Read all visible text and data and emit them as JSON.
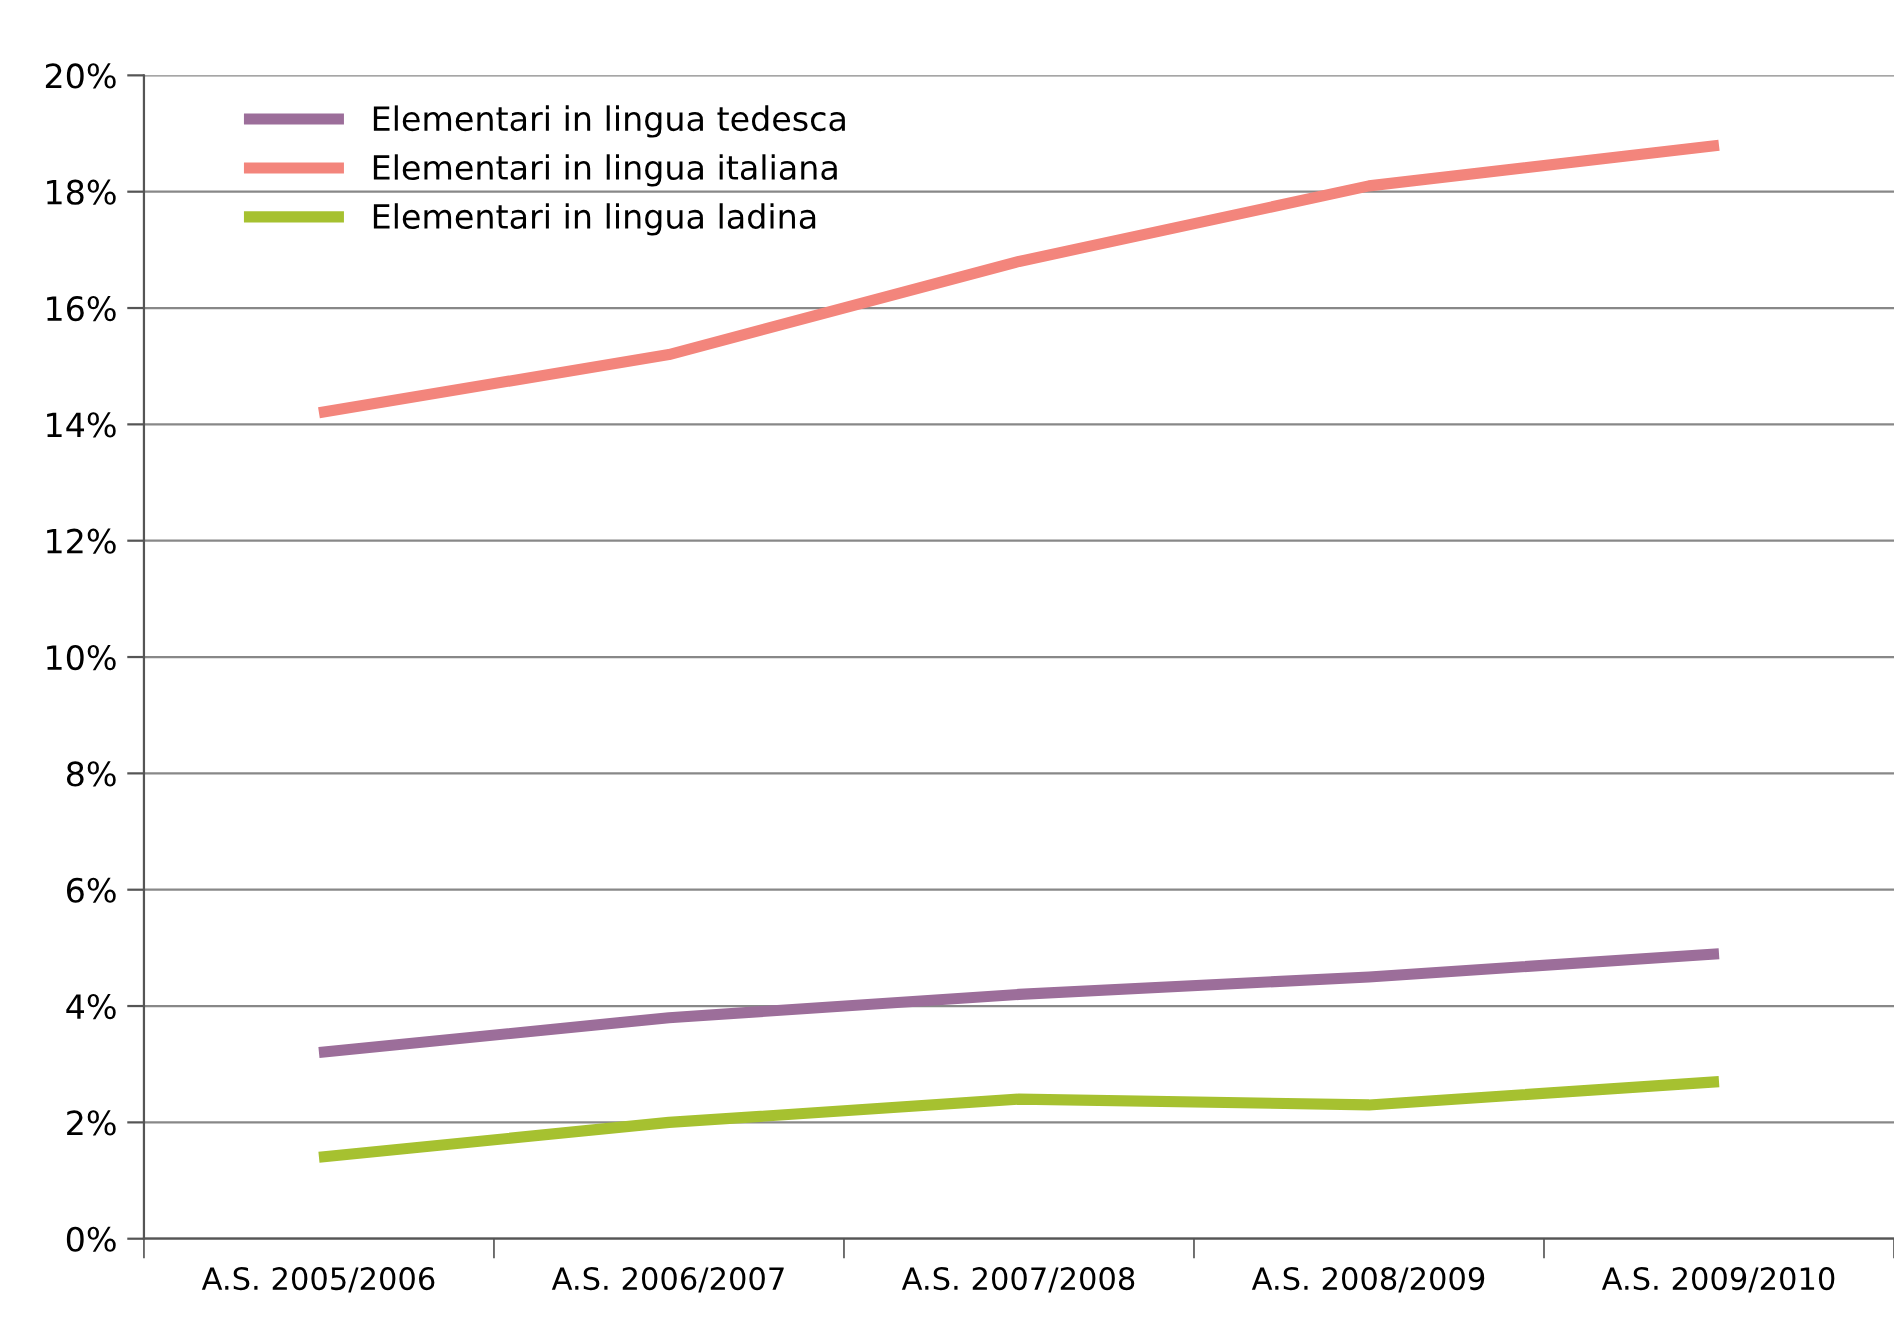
{
  "chart_data": {
    "type": "line",
    "categories": [
      "A.S. 2005/2006",
      "A.S. 2006/2007",
      "A.S. 2007/2008",
      "A.S. 2008/2009",
      "A.S. 2009/2010"
    ],
    "series": [
      {
        "name": "Elementari in lingua tedesca",
        "color": "#9c6e9a",
        "values": [
          3.2,
          3.8,
          4.2,
          4.5,
          4.9
        ]
      },
      {
        "name": "Elementari in lingua italiana",
        "color": "#f3857c",
        "values": [
          14.2,
          15.2,
          16.8,
          18.1,
          18.8
        ]
      },
      {
        "name": "Elementari in lingua ladina",
        "color": "#a6c130",
        "values": [
          1.4,
          2.0,
          2.4,
          2.3,
          2.7
        ]
      }
    ],
    "ylim": [
      0,
      20
    ],
    "yticks": [
      {
        "value": 0,
        "label": "0%"
      },
      {
        "value": 2,
        "label": "2%"
      },
      {
        "value": 4,
        "label": "4%"
      },
      {
        "value": 6,
        "label": "6%"
      },
      {
        "value": 8,
        "label": "8%"
      },
      {
        "value": 10,
        "label": "10%"
      },
      {
        "value": 12,
        "label": "12%"
      },
      {
        "value": 14,
        "label": "14%"
      },
      {
        "value": 16,
        "label": "16%"
      },
      {
        "value": 18,
        "label": "18%"
      },
      {
        "value": 20,
        "label": "20%"
      }
    ],
    "grid": "y",
    "legend": "top left",
    "marker": "none",
    "line_style": "solid"
  }
}
